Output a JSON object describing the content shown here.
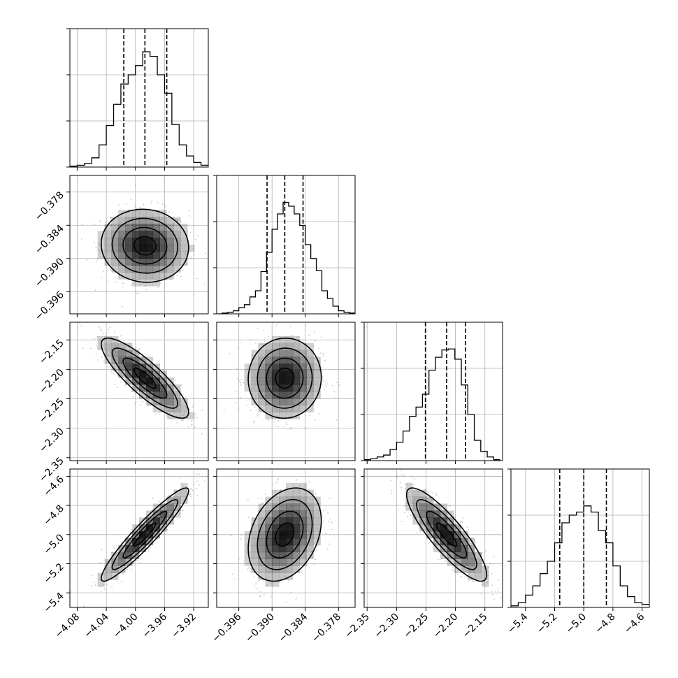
{
  "chart_data": {
    "type": "corner",
    "title": "",
    "parameters": [
      {
        "ticks": [
          -4.08,
          -4.04,
          -4.0,
          -3.96,
          -3.92
        ],
        "tick_labels": [
          "−4.08",
          "−4.04",
          "−4.00",
          "−3.96",
          "−3.92"
        ],
        "range": [
          -4.09,
          -3.9
        ],
        "quantiles": [
          -4.016,
          -3.987,
          -3.957
        ],
        "mean": -3.987,
        "sd": 0.03
      },
      {
        "ticks": [
          -0.396,
          -0.39,
          -0.384,
          -0.378
        ],
        "tick_labels": [
          "−0.396",
          "−0.390",
          "−0.384",
          "−0.378"
        ],
        "range": [
          -0.4,
          -0.375
        ],
        "quantiles": [
          -0.3909,
          -0.3877,
          -0.3844
        ],
        "mean": -0.3877,
        "sd": 0.0033
      },
      {
        "ticks": [
          -2.35,
          -2.3,
          -2.25,
          -2.2,
          -2.15
        ],
        "tick_labels": [
          "−2.35",
          "−2.30",
          "−2.25",
          "−2.20",
          "−2.15"
        ],
        "range": [
          -2.355,
          -2.12
        ],
        "quantiles": [
          -2.251,
          -2.215,
          -2.183
        ],
        "mean": -2.215,
        "sd": 0.034
      },
      {
        "ticks": [
          -5.4,
          -5.2,
          -5.0,
          -4.8,
          -4.6
        ],
        "tick_labels": [
          "−5.4",
          "−5.2",
          "−5.0",
          "−4.8",
          "−4.6"
        ],
        "range": [
          -5.5,
          -4.55
        ],
        "quantiles": [
          -5.165,
          -5.0,
          -4.845
        ],
        "mean": -5.0,
        "sd": 0.16
      }
    ],
    "histograms": [
      {
        "param": 0,
        "bin_edges": [
          -4.09,
          -4.08,
          -4.07,
          -4.06,
          -4.05,
          -4.04,
          -4.03,
          -4.02,
          -4.01,
          -4.0,
          -3.99,
          -3.98,
          -3.97,
          -3.96,
          -3.95,
          -3.94,
          -3.93,
          -3.92,
          -3.91,
          -3.9
        ],
        "counts": [
          1,
          2,
          4,
          10,
          24,
          45,
          68,
          90,
          100,
          110,
          125,
          120,
          100,
          80,
          46,
          24,
          12,
          5,
          2
        ],
        "ylim": [
          0,
          150
        ]
      },
      {
        "param": 1,
        "bin_edges": [
          -0.4,
          -0.399,
          -0.398,
          -0.397,
          -0.396,
          -0.395,
          -0.394,
          -0.393,
          -0.392,
          -0.391,
          -0.39,
          -0.389,
          -0.388,
          -0.387,
          -0.386,
          -0.385,
          -0.384,
          -0.383,
          -0.382,
          -0.381,
          -0.38,
          -0.379,
          -0.378,
          -0.377,
          -0.376,
          -0.375
        ],
        "counts": [
          0,
          1,
          2,
          4,
          8,
          12,
          22,
          30,
          55,
          80,
          110,
          130,
          145,
          140,
          130,
          115,
          90,
          72,
          56,
          30,
          20,
          10,
          4,
          2,
          1
        ],
        "ylim": [
          0,
          180
        ]
      },
      {
        "param": 2,
        "bin_edges": [
          -2.355,
          -2.344,
          -2.333,
          -2.322,
          -2.311,
          -2.3,
          -2.289,
          -2.278,
          -2.267,
          -2.256,
          -2.245,
          -2.234,
          -2.223,
          -2.212,
          -2.201,
          -2.19,
          -2.179,
          -2.168,
          -2.157,
          -2.146,
          -2.135,
          -2.124
        ],
        "counts": [
          1,
          2,
          4,
          6,
          12,
          20,
          32,
          48,
          58,
          72,
          98,
          112,
          120,
          121,
          110,
          82,
          50,
          22,
          10,
          4,
          1
        ],
        "ylim": [
          0,
          150
        ]
      },
      {
        "param": 3,
        "bin_edges": [
          -5.5,
          -5.45,
          -5.4,
          -5.35,
          -5.3,
          -5.25,
          -5.2,
          -5.15,
          -5.1,
          -5.05,
          -5.0,
          -4.95,
          -4.9,
          -4.85,
          -4.8,
          -4.75,
          -4.7,
          -4.65,
          -4.6,
          -4.55
        ],
        "counts": [
          1,
          3,
          8,
          14,
          22,
          30,
          42,
          55,
          60,
          62,
          66,
          62,
          50,
          42,
          27,
          14,
          7,
          3,
          2
        ],
        "ylim": [
          0,
          90
        ]
      }
    ],
    "correlations": {
      "1_0": -0.05,
      "2_0": -0.85,
      "2_1": 0.02,
      "3_0": 0.94,
      "3_1": 0.3,
      "3_2": -0.86
    },
    "contour_levels_sigma": [
      0.5,
      1.0,
      1.5,
      2.0
    ],
    "grid": true,
    "colors": {
      "line": "#000000",
      "grid": "#b0b0b0",
      "points": "#808080",
      "density": "#000000"
    }
  }
}
